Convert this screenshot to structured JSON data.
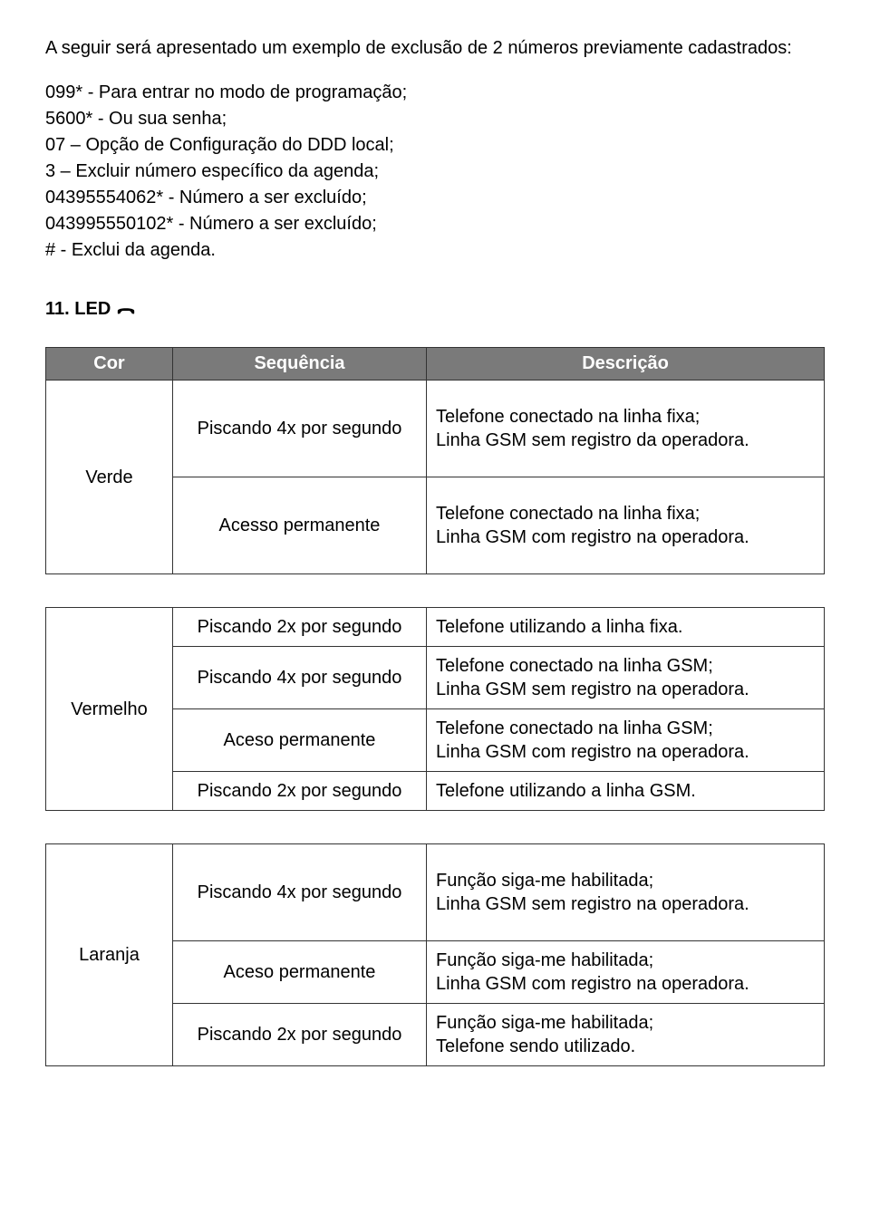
{
  "intro": "A seguir será apresentado um exemplo de exclusão de 2 números previamente cadastrados:",
  "steps": [
    "099* - Para entrar no modo de programação;",
    "5600* - Ou sua senha;",
    "07 – Opção de Configuração do DDD local;",
    "3 – Excluir número específico da agenda;",
    "04395554062* - Número a ser excluído;",
    "043995550102* - Número a ser excluído;",
    "# - Exclui da agenda."
  ],
  "heading": "11. LED",
  "table": {
    "headers": {
      "cor": "Cor",
      "seq": "Sequência",
      "desc": "Descrição"
    },
    "groups": [
      {
        "cor": "Verde",
        "rows": [
          {
            "seq": "Piscando 4x por segundo",
            "desc": "Telefone conectado na linha fixa;\nLinha GSM sem registro da operadora.",
            "tall": true
          },
          {
            "seq": "Acesso permanente",
            "desc": "Telefone conectado na linha fixa;\nLinha GSM com registro na operadora.",
            "tall": true
          }
        ]
      },
      {
        "cor": "Vermelho",
        "rows": [
          {
            "seq": "Piscando 2x por segundo",
            "desc": "Telefone utilizando a linha fixa."
          },
          {
            "seq": "Piscando 4x por segundo",
            "desc": "Telefone conectado na linha GSM;\nLinha GSM sem registro na operadora."
          },
          {
            "seq": "Aceso permanente",
            "desc": "Telefone conectado na linha GSM;\nLinha GSM com registro na operadora."
          },
          {
            "seq": "Piscando 2x por segundo",
            "desc": "Telefone utilizando a linha GSM."
          }
        ]
      },
      {
        "cor": "Laranja",
        "rows": [
          {
            "seq": "Piscando 4x por segundo",
            "desc": "Função siga-me habilitada;\nLinha GSM sem registro na operadora.",
            "tall": true
          },
          {
            "seq": "Aceso permanente",
            "desc": "Função siga-me habilitada;\nLinha GSM com registro na operadora."
          },
          {
            "seq": "Piscando 2x por segundo",
            "desc": "Função siga-me habilitada;\nTelefone sendo utilizado."
          }
        ]
      }
    ]
  }
}
